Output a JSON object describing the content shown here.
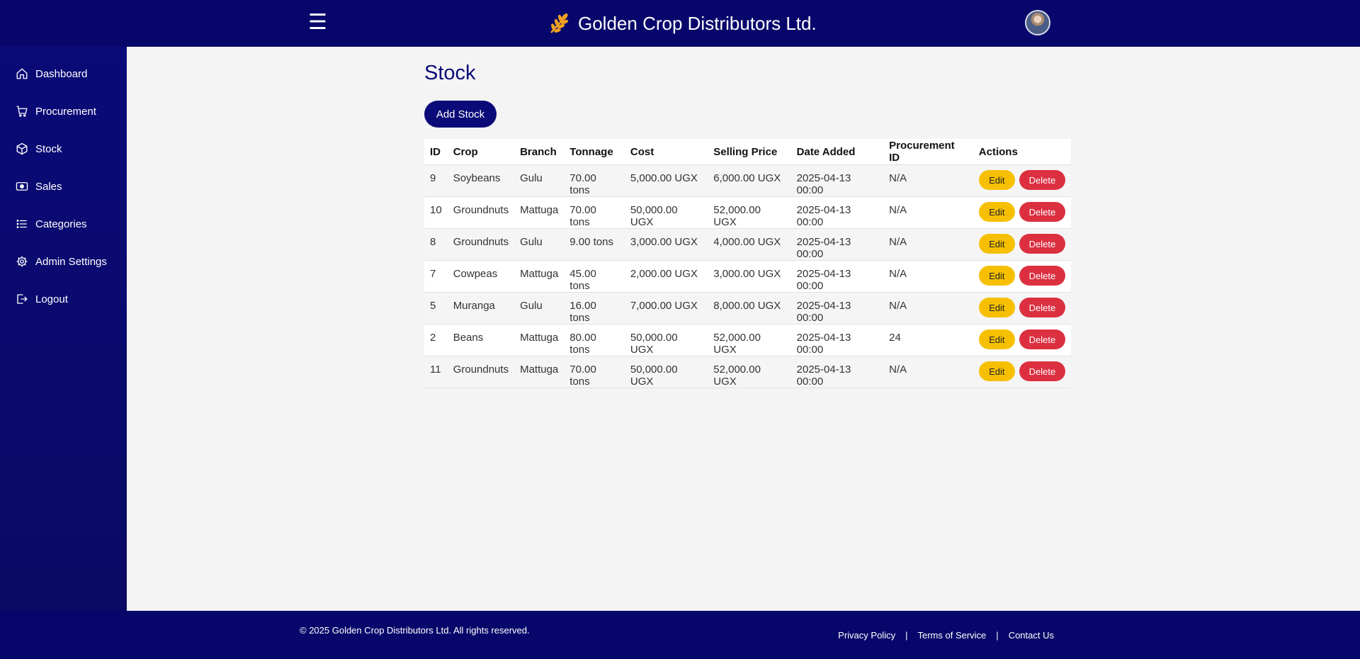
{
  "header": {
    "menu_icon": "☰",
    "brand_icon": "wheat-icon",
    "title": "Golden Crop Distributors Ltd.",
    "accent_color": "#07076b",
    "brand_icon_color": "#f0a020"
  },
  "sidebar": {
    "items": [
      {
        "label": "Dashboard",
        "icon": "home-icon"
      },
      {
        "label": "Procurement",
        "icon": "cart-icon"
      },
      {
        "label": "Stock",
        "icon": "box-icon"
      },
      {
        "label": "Sales",
        "icon": "cash-icon"
      },
      {
        "label": "Categories",
        "icon": "list-icon"
      },
      {
        "label": "Admin Settings",
        "icon": "gear-icon"
      },
      {
        "label": "Logout",
        "icon": "logout-icon"
      }
    ]
  },
  "main": {
    "title": "Stock",
    "add_button": "Add Stock",
    "table": {
      "columns": [
        "ID",
        "Crop",
        "Branch",
        "Tonnage",
        "Cost",
        "Selling Price",
        "Date Added",
        "Procurement ID",
        "Actions"
      ],
      "rows": [
        {
          "id": "9",
          "crop": "Soybeans",
          "branch": "Gulu",
          "tonnage": "70.00 tons",
          "cost": "5,000.00 UGX",
          "price": "6,000.00 UGX",
          "date": "2025-04-13 00:00",
          "procurement": "N/A"
        },
        {
          "id": "10",
          "crop": "Groundnuts",
          "branch": "Mattuga",
          "tonnage": "70.00 tons",
          "cost": "50,000.00 UGX",
          "price": "52,000.00 UGX",
          "date": "2025-04-13 00:00",
          "procurement": "N/A"
        },
        {
          "id": "8",
          "crop": "Groundnuts",
          "branch": "Gulu",
          "tonnage": "9.00 tons",
          "cost": "3,000.00 UGX",
          "price": "4,000.00 UGX",
          "date": "2025-04-13 00:00",
          "procurement": "N/A"
        },
        {
          "id": "7",
          "crop": "Cowpeas",
          "branch": "Mattuga",
          "tonnage": "45.00 tons",
          "cost": "2,000.00 UGX",
          "price": "3,000.00 UGX",
          "date": "2025-04-13 00:00",
          "procurement": "N/A"
        },
        {
          "id": "5",
          "crop": "Muranga",
          "branch": "Gulu",
          "tonnage": "16.00 tons",
          "cost": "7,000.00 UGX",
          "price": "8,000.00 UGX",
          "date": "2025-04-13 00:00",
          "procurement": "N/A"
        },
        {
          "id": "2",
          "crop": "Beans",
          "branch": "Mattuga",
          "tonnage": "80.00 tons",
          "cost": "50,000.00 UGX",
          "price": "52,000.00 UGX",
          "date": "2025-04-13 00:00",
          "procurement": "24"
        },
        {
          "id": "11",
          "crop": "Groundnuts",
          "branch": "Mattuga",
          "tonnage": "70.00 tons",
          "cost": "50,000.00 UGX",
          "price": "52,000.00 UGX",
          "date": "2025-04-13 00:00",
          "procurement": "N/A"
        }
      ],
      "edit_label": "Edit",
      "delete_label": "Delete",
      "edit_color": "#f6c000",
      "delete_color": "#dc3040"
    }
  },
  "footer": {
    "copyright": "© 2025 Golden Crop Distributors Ltd. All rights reserved.",
    "links": [
      "Privacy Policy",
      "Terms of Service",
      "Contact Us"
    ],
    "separator": "|"
  }
}
